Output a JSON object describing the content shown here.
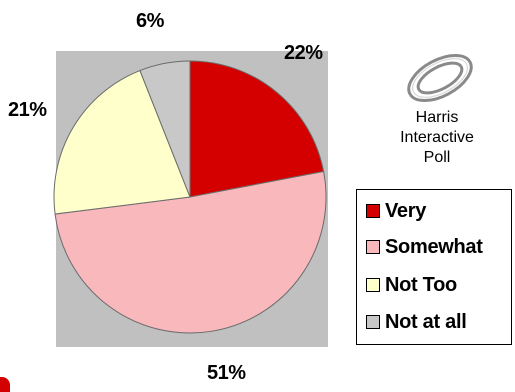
{
  "chart_data": {
    "type": "pie",
    "categories": [
      "Very",
      "Somewhat",
      "Not Too",
      "Not at all"
    ],
    "values": [
      22,
      51,
      21,
      6
    ],
    "labels": [
      "22%",
      "51%",
      "21%",
      "6%"
    ],
    "colors": [
      "#d40000",
      "#f8b8bc",
      "#ffffcc",
      "#c8c8c8"
    ],
    "start_angle_deg": 0,
    "direction": "clockwise",
    "legend_position": "right",
    "plot_background": "#c0c0c0"
  },
  "logo": {
    "icon": "harris-rings-icon",
    "lines": [
      "Harris",
      "Interactive",
      "Poll"
    ]
  },
  "legend": {
    "items": [
      "Very",
      "Somewhat",
      "Not Too",
      "Not at all"
    ]
  }
}
